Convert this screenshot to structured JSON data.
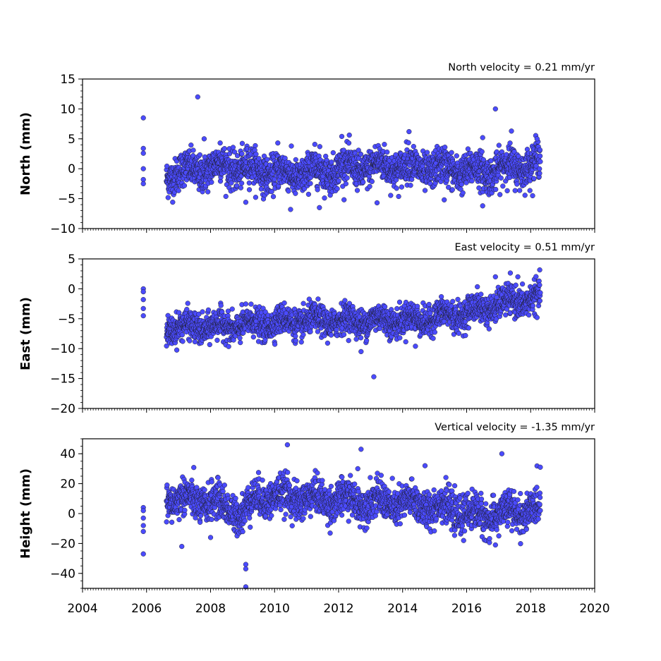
{
  "chart_data": [
    {
      "type": "scatter",
      "title": "North velocity = 0.21 mm/yr",
      "xlabel": "",
      "ylabel": "North (mm)",
      "xlim": [
        2004,
        2020
      ],
      "ylim": [
        -10,
        15
      ],
      "yticks": [
        -10,
        -5,
        0,
        5,
        10,
        15
      ],
      "yminor": 1,
      "xticks_labeled": false,
      "marker_color": "#4b4bff",
      "marker_edge": "#1a1a1a",
      "start": 2006.62,
      "end": 2018.3,
      "noise": 1.5,
      "trend": [
        [
          2006.6,
          -1.0
        ],
        [
          2008.5,
          0.5
        ],
        [
          2010.5,
          -1.0
        ],
        [
          2012.0,
          0.0
        ],
        [
          2013.5,
          0.5
        ],
        [
          2015.0,
          0.0
        ],
        [
          2016.5,
          -0.5
        ],
        [
          2018.3,
          1.0
        ]
      ],
      "outliers": [
        [
          2005.9,
          8.5
        ],
        [
          2005.9,
          3.4
        ],
        [
          2005.9,
          2.6
        ],
        [
          2005.9,
          0.0
        ],
        [
          2005.9,
          -1.8
        ],
        [
          2005.9,
          -2.5
        ],
        [
          2007.6,
          12.0
        ],
        [
          2007.8,
          5.0
        ],
        [
          2008.3,
          4.3
        ],
        [
          2009.1,
          -5.6
        ],
        [
          2010.1,
          4.3
        ],
        [
          2010.5,
          -6.8
        ],
        [
          2011.4,
          -6.5
        ],
        [
          2012.1,
          5.4
        ],
        [
          2013.2,
          -5.7
        ],
        [
          2014.2,
          6.2
        ],
        [
          2015.3,
          -5.2
        ],
        [
          2016.5,
          -6.2
        ],
        [
          2016.5,
          5.2
        ],
        [
          2016.9,
          10.0
        ],
        [
          2017.4,
          6.3
        ],
        [
          2018.2,
          5.0
        ]
      ]
    },
    {
      "type": "scatter",
      "title": "East velocity = 0.51 mm/yr",
      "xlabel": "",
      "ylabel": "East (mm)",
      "xlim": [
        2004,
        2020
      ],
      "ylim": [
        -20,
        5
      ],
      "yticks": [
        -20,
        -15,
        -10,
        -5,
        0,
        5
      ],
      "yminor": 1,
      "xticks_labeled": false,
      "marker_color": "#4b4bff",
      "marker_edge": "#1a1a1a",
      "start": 2006.62,
      "end": 2018.3,
      "noise": 1.2,
      "trend": [
        [
          2006.6,
          -6.5
        ],
        [
          2008.5,
          -6.3
        ],
        [
          2010.5,
          -5.5
        ],
        [
          2012.5,
          -5.3
        ],
        [
          2014.5,
          -5.2
        ],
        [
          2016.0,
          -4.0
        ],
        [
          2017.5,
          -2.0
        ],
        [
          2018.3,
          -1.5
        ]
      ],
      "outliers": [
        [
          2005.9,
          0.0
        ],
        [
          2005.9,
          -0.5
        ],
        [
          2005.9,
          -1.8
        ],
        [
          2005.9,
          -3.3
        ],
        [
          2005.9,
          -4.5
        ],
        [
          2012.7,
          -10.5
        ],
        [
          2013.1,
          -14.7
        ],
        [
          2014.4,
          -9.6
        ],
        [
          2016.9,
          2.0
        ],
        [
          2017.6,
          2.0
        ],
        [
          2018.2,
          -4.8
        ]
      ]
    },
    {
      "type": "scatter",
      "title": "Vertical velocity = -1.35 mm/yr",
      "xlabel": "",
      "ylabel": "Height (mm)",
      "xlim": [
        2004,
        2020
      ],
      "ylim": [
        -50,
        50
      ],
      "yticks": [
        -40,
        -20,
        0,
        20,
        40
      ],
      "yminor": 5,
      "xticks_labeled": true,
      "xticks": [
        2004,
        2006,
        2008,
        2010,
        2012,
        2014,
        2016,
        2018,
        2020
      ],
      "marker_color": "#4b4bff",
      "marker_edge": "#1a1a1a",
      "start": 2006.62,
      "end": 2018.3,
      "noise": 6,
      "trend": [
        [
          2006.6,
          10
        ],
        [
          2008.0,
          8
        ],
        [
          2009.0,
          0
        ],
        [
          2009.5,
          12
        ],
        [
          2011.0,
          10
        ],
        [
          2013.0,
          8
        ],
        [
          2015.0,
          5
        ],
        [
          2016.5,
          -2
        ],
        [
          2018.3,
          3
        ]
      ],
      "outliers": [
        [
          2005.9,
          4
        ],
        [
          2005.9,
          2
        ],
        [
          2005.9,
          -3
        ],
        [
          2005.9,
          -8
        ],
        [
          2005.9,
          -12
        ],
        [
          2005.9,
          -27
        ],
        [
          2007.1,
          -22
        ],
        [
          2008.0,
          -16
        ],
        [
          2009.1,
          -34
        ],
        [
          2009.1,
          -37
        ],
        [
          2009.1,
          -49
        ],
        [
          2010.4,
          46
        ],
        [
          2012.7,
          43
        ],
        [
          2012.6,
          30
        ],
        [
          2014.7,
          32
        ],
        [
          2016.9,
          -21
        ],
        [
          2017.1,
          40
        ],
        [
          2018.3,
          31
        ]
      ]
    }
  ]
}
